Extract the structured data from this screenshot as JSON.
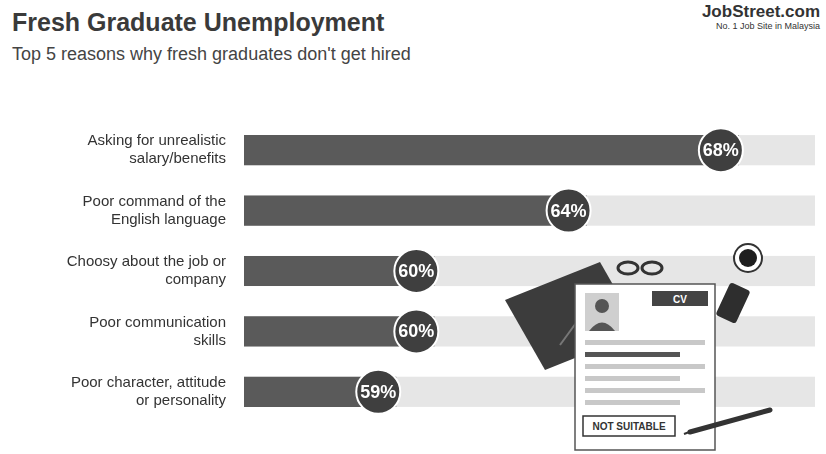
{
  "chart_data": {
    "type": "bar",
    "title": "Fresh Graduate Unemployment",
    "subtitle": "Top 5 reasons why fresh graduates don't get hired",
    "source": "JobStreet.com",
    "source_note": "No. 1 Job Site in Malaysia",
    "annotations": [
      "CV",
      "NOT SUITABLE"
    ],
    "orientation": "horizontal",
    "categories": [
      "Asking for unrealistic salary/benefits",
      "Poor command of the English language",
      "Choosy about the job or company",
      "Poor communication skills",
      "Poor character, attitude or personality"
    ],
    "values": [
      68,
      64,
      60,
      60,
      59
    ],
    "value_labels": [
      "68%",
      "64%",
      "60%",
      "60%",
      "59%"
    ],
    "data_labels": true,
    "color": "#5a5a5a",
    "xlim": [
      55,
      70
    ],
    "xticks": [
      55,
      60,
      65,
      70
    ],
    "grid": false,
    "tick_labels": "y"
  }
}
